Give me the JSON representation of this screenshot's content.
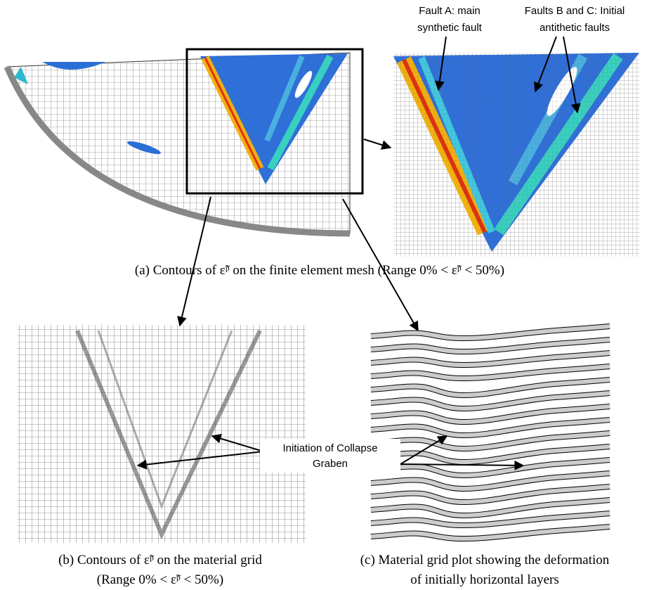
{
  "panels": {
    "a": {
      "caption": "(a) Contours of ε̃ᵖ on the finite element mesh (Range 0% < ε̃ᵖ < 50%)",
      "fault_a": [
        "Fault A: main",
        "synthetic fault"
      ],
      "faults_bc": [
        "Faults B and C: Initial",
        "antithetic faults"
      ]
    },
    "b": {
      "caption": [
        "(b) Contours of ε̃ᵖ on the material grid",
        "(Range 0% < ε̃ᵖ < 50%)"
      ]
    },
    "c": {
      "caption": [
        "(c) Material grid plot showing the deformation",
        "of initially horizontal layers"
      ]
    },
    "shared_label": [
      "Initiation of Collapse",
      "Graben"
    ]
  }
}
